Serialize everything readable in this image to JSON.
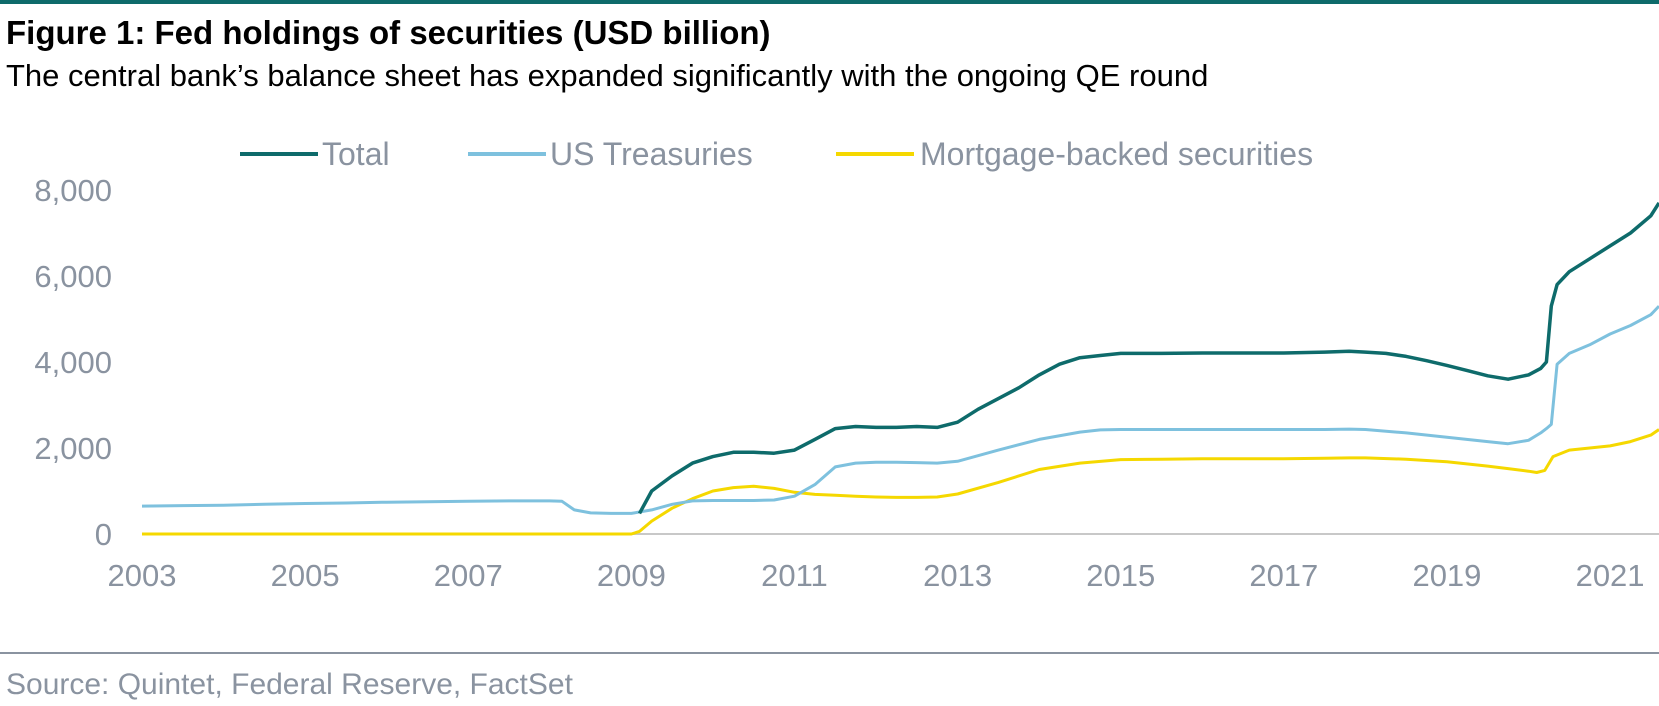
{
  "title": "Figure 1: Fed holdings of securities (USD billion)",
  "subtitle": "The central bank’s balance sheet has expanded significantly with the ongoing QE round",
  "source": "Source: Quintet, Federal Reserve, FactSet",
  "colors": {
    "accent_rule": "#0e6b6b",
    "axis_text": "#8a93a0",
    "axis_line": "#c8c8c8"
  },
  "chart_data": {
    "type": "line",
    "title": "",
    "xlabel": "",
    "ylabel": "",
    "xlim": [
      2003,
      2021.6
    ],
    "ylim": [
      0,
      8000
    ],
    "grid": false,
    "legend_position": "top",
    "x_ticks": [
      "2003",
      "2005",
      "2007",
      "2009",
      "2011",
      "2013",
      "2015",
      "2017",
      "2019",
      "2021"
    ],
    "y_ticks": [
      "0",
      "2,000",
      "4,000",
      "6,000",
      "8,000"
    ],
    "series": [
      {
        "name": "Total",
        "color": "#0e6b6b",
        "x": [
          2009.1,
          2009.25,
          2009.5,
          2009.75,
          2010.0,
          2010.25,
          2010.5,
          2010.75,
          2011.0,
          2011.25,
          2011.5,
          2011.75,
          2012.0,
          2012.25,
          2012.5,
          2012.75,
          2013.0,
          2013.25,
          2013.5,
          2013.75,
          2014.0,
          2014.25,
          2014.5,
          2014.75,
          2015.0,
          2015.5,
          2016.0,
          2016.5,
          2017.0,
          2017.5,
          2017.8,
          2018.0,
          2018.25,
          2018.5,
          2018.75,
          2019.0,
          2019.25,
          2019.5,
          2019.75,
          2020.0,
          2020.15,
          2020.22,
          2020.28,
          2020.35,
          2020.5,
          2020.75,
          2021.0,
          2021.25,
          2021.5,
          2021.6
        ],
        "y": [
          480,
          1000,
          1350,
          1650,
          1800,
          1900,
          1900,
          1880,
          1950,
          2200,
          2450,
          2500,
          2480,
          2480,
          2500,
          2480,
          2600,
          2900,
          3150,
          3400,
          3700,
          3950,
          4100,
          4150,
          4200,
          4200,
          4210,
          4210,
          4210,
          4230,
          4250,
          4230,
          4200,
          4130,
          4030,
          3920,
          3800,
          3680,
          3600,
          3700,
          3850,
          4000,
          5300,
          5800,
          6100,
          6400,
          6700,
          7000,
          7400,
          7700
        ]
      },
      {
        "name": "US Treasuries",
        "color": "#7ec1de",
        "x": [
          2003.0,
          2003.5,
          2004.0,
          2004.5,
          2005.0,
          2005.5,
          2006.0,
          2006.5,
          2007.0,
          2007.5,
          2008.0,
          2008.15,
          2008.3,
          2008.5,
          2008.75,
          2009.0,
          2009.25,
          2009.5,
          2009.75,
          2010.0,
          2010.25,
          2010.5,
          2010.75,
          2011.0,
          2011.25,
          2011.5,
          2011.75,
          2012.0,
          2012.25,
          2012.5,
          2012.75,
          2013.0,
          2013.5,
          2014.0,
          2014.5,
          2014.75,
          2015.0,
          2015.5,
          2016.0,
          2016.5,
          2017.0,
          2017.5,
          2017.8,
          2018.0,
          2018.5,
          2019.0,
          2019.5,
          2019.75,
          2020.0,
          2020.15,
          2020.22,
          2020.28,
          2020.35,
          2020.5,
          2020.75,
          2021.0,
          2021.25,
          2021.5,
          2021.6
        ],
        "y": [
          650,
          660,
          670,
          690,
          710,
          720,
          740,
          750,
          760,
          770,
          770,
          760,
          560,
          490,
          480,
          480,
          560,
          690,
          770,
          780,
          780,
          780,
          790,
          880,
          1150,
          1560,
          1650,
          1670,
          1670,
          1660,
          1650,
          1690,
          1950,
          2200,
          2370,
          2420,
          2430,
          2430,
          2430,
          2430,
          2430,
          2430,
          2440,
          2430,
          2350,
          2250,
          2150,
          2100,
          2180,
          2350,
          2450,
          2550,
          3950,
          4200,
          4400,
          4650,
          4850,
          5100,
          5300
        ]
      },
      {
        "name": "Mortgage-backed securities",
        "color": "#f5d800",
        "x": [
          2003.0,
          2004.0,
          2005.0,
          2006.0,
          2007.0,
          2008.0,
          2008.5,
          2008.9,
          2009.0,
          2009.1,
          2009.25,
          2009.5,
          2009.75,
          2010.0,
          2010.25,
          2010.5,
          2010.75,
          2011.0,
          2011.25,
          2011.5,
          2011.75,
          2012.0,
          2012.25,
          2012.5,
          2012.75,
          2013.0,
          2013.5,
          2014.0,
          2014.5,
          2015.0,
          2015.5,
          2016.0,
          2016.5,
          2017.0,
          2017.5,
          2017.8,
          2018.0,
          2018.5,
          2019.0,
          2019.5,
          2019.75,
          2020.0,
          2020.1,
          2020.2,
          2020.3,
          2020.5,
          2020.75,
          2021.0,
          2021.25,
          2021.5,
          2021.6
        ],
        "y": [
          0,
          0,
          0,
          0,
          0,
          0,
          0,
          0,
          0,
          60,
          300,
          600,
          820,
          1000,
          1080,
          1110,
          1060,
          970,
          920,
          900,
          880,
          860,
          850,
          850,
          860,
          930,
          1200,
          1500,
          1650,
          1730,
          1740,
          1750,
          1750,
          1750,
          1760,
          1770,
          1770,
          1740,
          1680,
          1580,
          1520,
          1460,
          1430,
          1480,
          1800,
          1950,
          2000,
          2050,
          2150,
          2300,
          2430
        ]
      }
    ]
  }
}
